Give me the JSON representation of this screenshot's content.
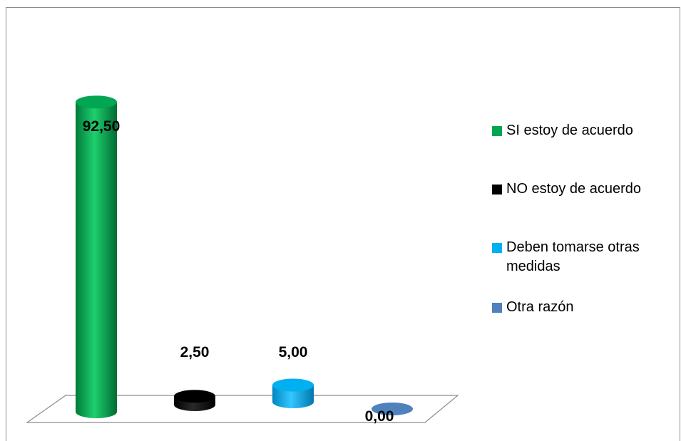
{
  "chart_data": {
    "type": "bar",
    "categories": [
      "SI estoy de acuerdo",
      "NO estoy de acuerdo",
      "Deben tomarse otras medidas",
      "Otra razón"
    ],
    "values": [
      92.5,
      2.5,
      5.0,
      0.0
    ],
    "value_labels": [
      "92,50",
      "2,50",
      "5,00",
      "0,00"
    ],
    "colors": [
      "#00a651",
      "#000000",
      "#00b0f0",
      "#4f81bd"
    ],
    "legend": {
      "placement": "right",
      "items": [
        "SI estoy de acuerdo",
        "NO estoy de acuerdo",
        "Deben tomarse otras medidas",
        "Otra razón"
      ]
    },
    "title": "",
    "xlabel": "",
    "ylabel": "",
    "ylim": [
      0,
      100
    ],
    "grid": false,
    "style": "3d-cylinder"
  }
}
